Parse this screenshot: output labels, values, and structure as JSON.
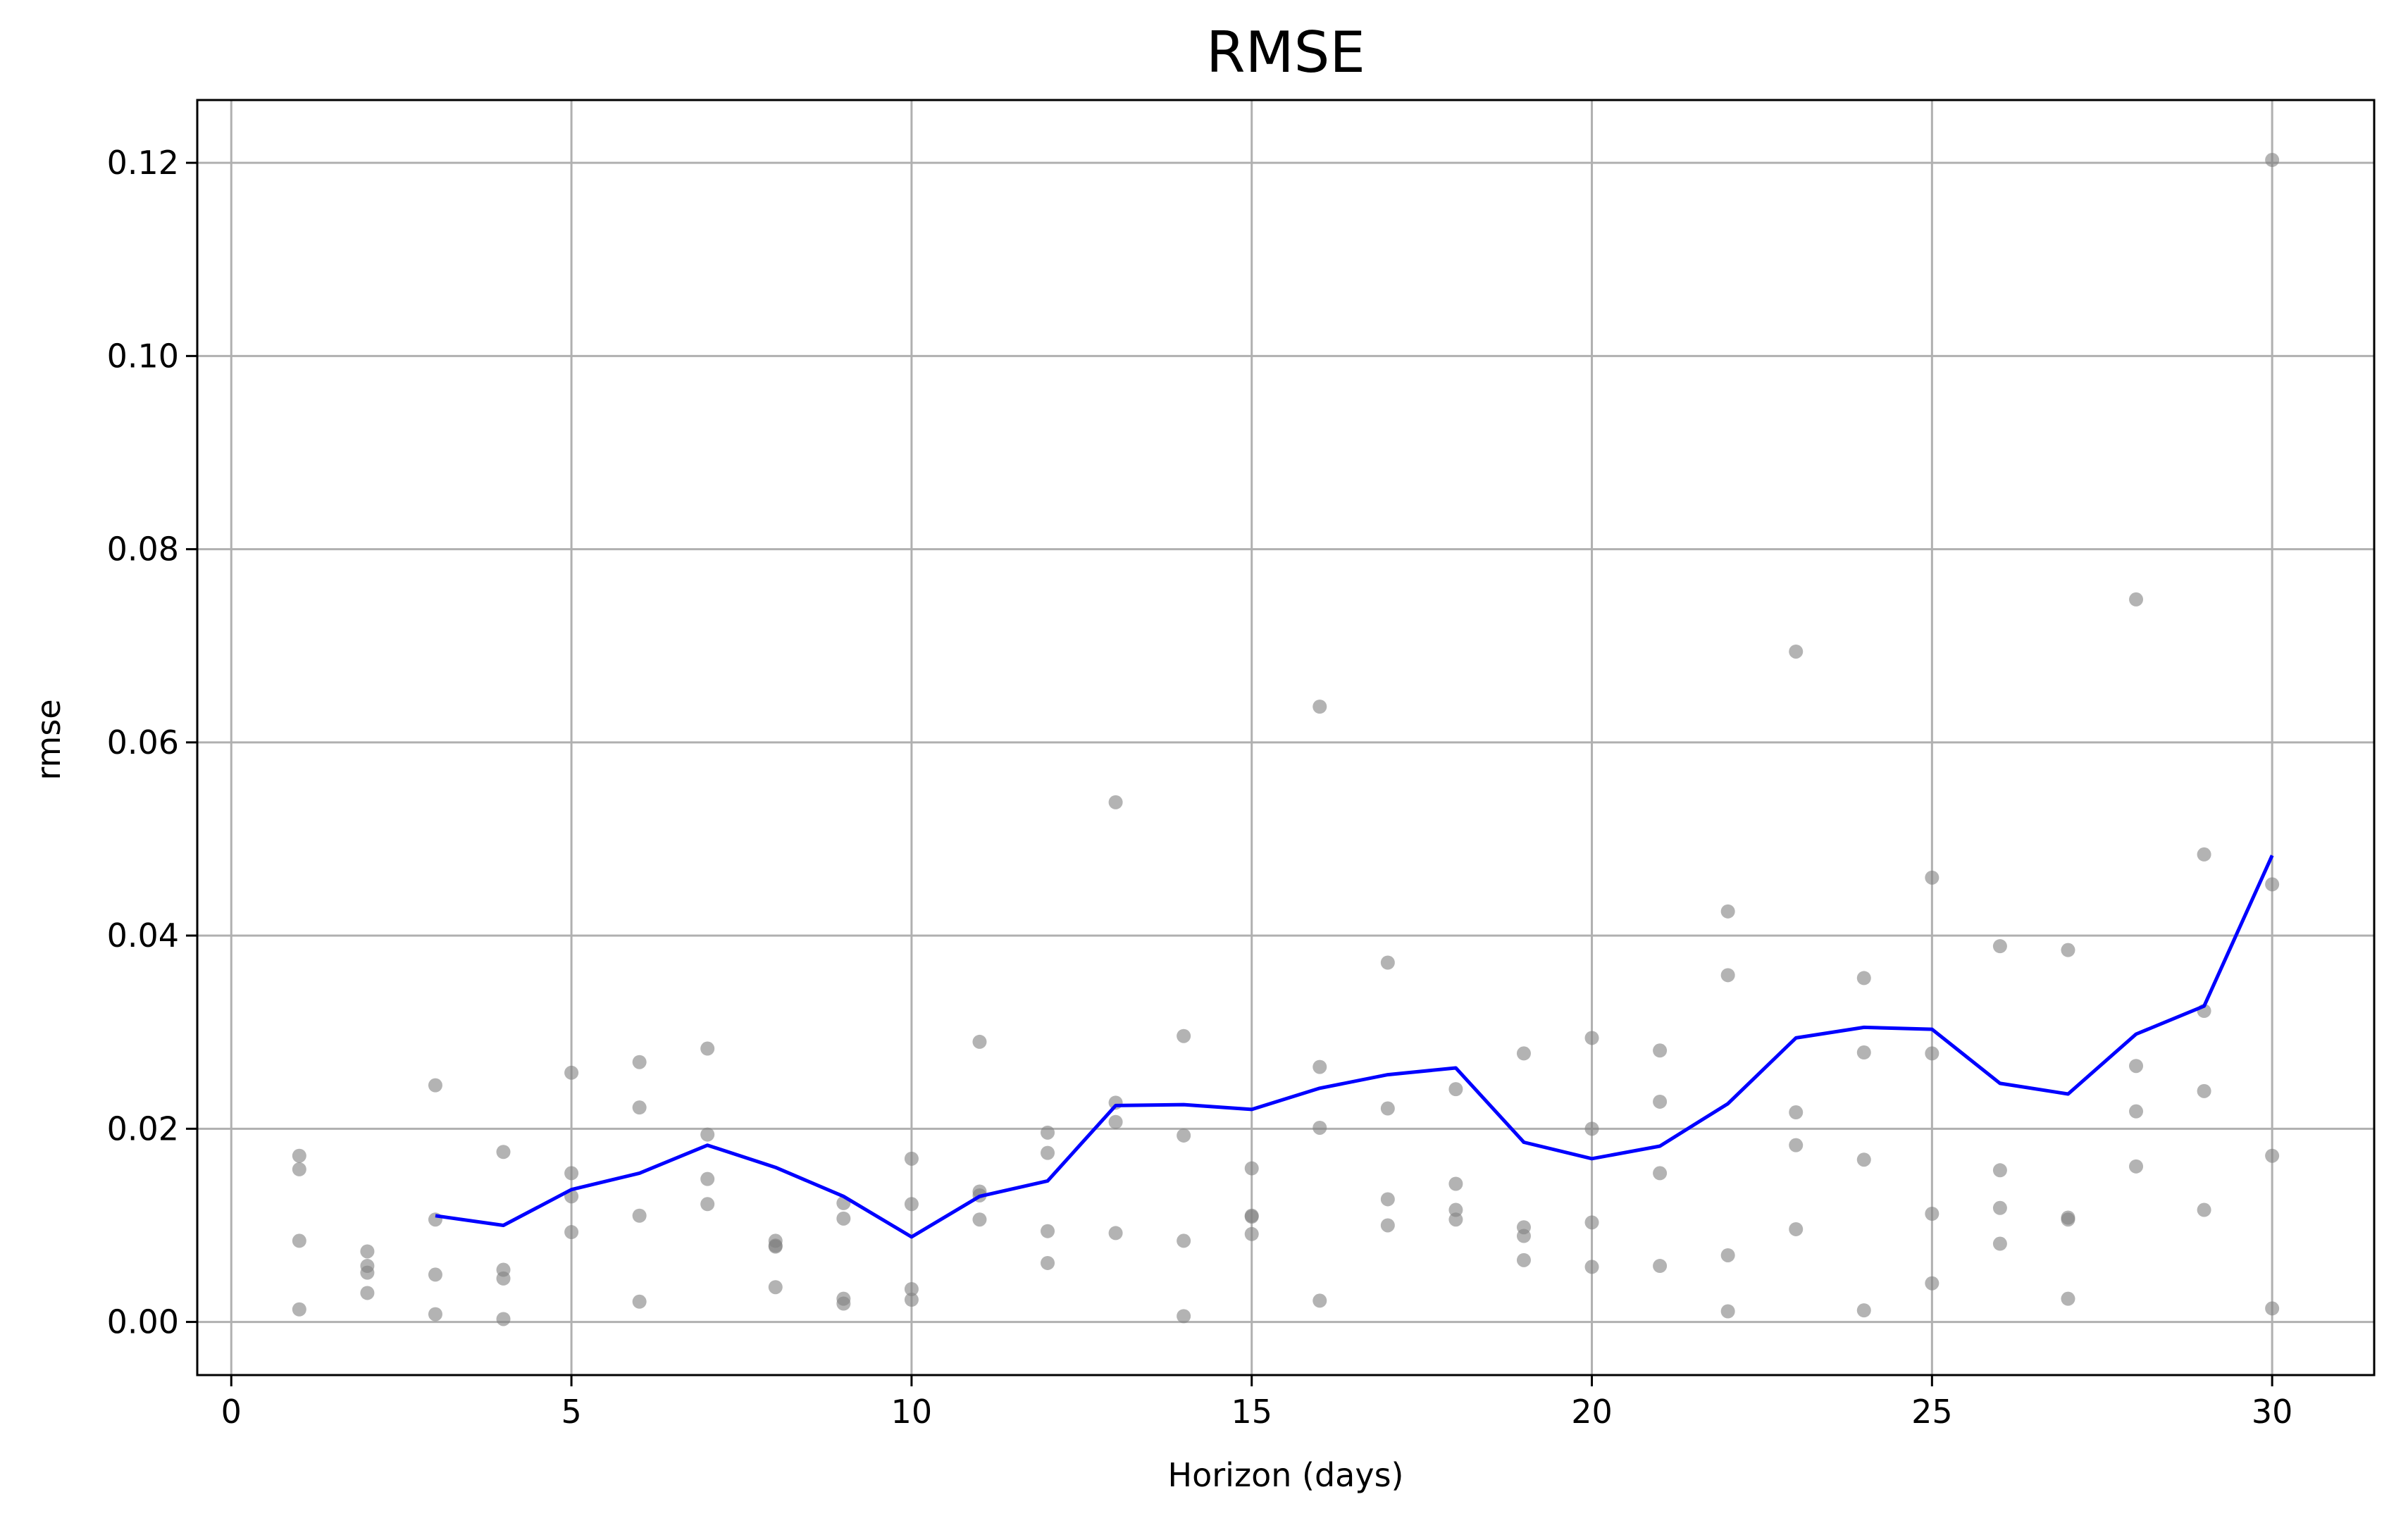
{
  "chart_data": {
    "type": "scatter",
    "title": "RMSE",
    "xlabel": "Horizon (days)",
    "ylabel": "rmse",
    "xlim": [
      -0.5,
      31.5
    ],
    "ylim": [
      -0.0055,
      0.1265
    ],
    "xticks": [
      0,
      5,
      10,
      15,
      20,
      25,
      30
    ],
    "yticks": [
      0.0,
      0.02,
      0.04,
      0.06,
      0.08,
      0.1,
      0.12
    ],
    "ytick_labels": [
      "0.00",
      "0.02",
      "0.04",
      "0.06",
      "0.08",
      "0.10",
      "0.12"
    ],
    "grid": true,
    "colors": {
      "points": "#808080",
      "line": "#0000ff",
      "grid": "#b0b0b0"
    },
    "series": [
      {
        "kind": "points",
        "x": [
          1,
          1,
          1,
          1,
          2,
          2,
          2,
          2,
          3,
          3,
          3,
          3,
          4,
          4,
          4,
          4,
          5,
          5,
          5,
          5,
          6,
          6,
          6,
          6,
          7,
          7,
          7,
          7,
          8,
          8,
          8,
          8,
          9,
          9,
          9,
          9,
          10,
          10,
          10,
          10,
          11,
          11,
          11,
          11,
          12,
          12,
          12,
          12,
          13,
          13,
          13,
          13,
          14,
          14,
          14,
          14,
          15,
          15,
          15,
          15,
          16,
          16,
          16,
          16,
          17,
          17,
          17,
          17,
          18,
          18,
          18,
          18,
          19,
          19,
          19,
          19,
          20,
          20,
          20,
          20,
          21,
          21,
          21,
          21,
          22,
          22,
          22,
          22,
          23,
          23,
          23,
          23,
          24,
          24,
          24,
          24,
          25,
          25,
          25,
          25,
          26,
          26,
          26,
          26,
          27,
          27,
          27,
          27,
          28,
          28,
          28,
          28,
          29,
          29,
          29,
          29,
          30,
          30,
          30,
          30
        ],
        "y": [
          0.0172,
          0.0158,
          0.0084,
          0.0013,
          0.0073,
          0.0058,
          0.0051,
          0.003,
          0.0245,
          0.0106,
          0.0049,
          0.0008,
          0.0176,
          0.0054,
          0.0045,
          0.0003,
          0.0258,
          0.0154,
          0.013,
          0.0093,
          0.0269,
          0.0222,
          0.011,
          0.0021,
          0.0283,
          0.0194,
          0.0148,
          0.0122,
          0.0084,
          0.0079,
          0.0078,
          0.0036,
          0.0123,
          0.0107,
          0.0024,
          0.0019,
          0.0169,
          0.0122,
          0.0034,
          0.0023,
          0.029,
          0.0135,
          0.0131,
          0.0106,
          0.0196,
          0.0175,
          0.0094,
          0.0061,
          0.0538,
          0.0227,
          0.0207,
          0.0092,
          0.0296,
          0.0193,
          0.0084,
          0.0006,
          0.0159,
          0.011,
          0.0109,
          0.0091,
          0.0637,
          0.0264,
          0.0201,
          0.0022,
          0.0372,
          0.0221,
          0.0127,
          0.01,
          0.0241,
          0.0143,
          0.0116,
          0.0106,
          0.0278,
          0.0098,
          0.0089,
          0.0064,
          0.0294,
          0.02,
          0.0103,
          0.0057,
          0.0281,
          0.0228,
          0.0154,
          0.0058,
          0.0425,
          0.0359,
          0.0069,
          0.0011,
          0.0694,
          0.0217,
          0.0183,
          0.0096,
          0.0356,
          0.0279,
          0.0168,
          0.0012,
          0.046,
          0.0278,
          0.0112,
          0.004,
          0.0389,
          0.0157,
          0.0118,
          0.0081,
          0.0385,
          0.0108,
          0.0106,
          0.0024,
          0.0748,
          0.0265,
          0.0218,
          0.0161,
          0.0484,
          0.0322,
          0.0239,
          0.0116,
          0.1203,
          0.0453,
          0.0172,
          0.0014
        ]
      },
      {
        "kind": "line",
        "x": [
          3,
          4,
          5,
          6,
          7,
          8,
          9,
          10,
          11,
          12,
          13,
          14,
          15,
          16,
          17,
          18,
          19,
          20,
          21,
          22,
          23,
          24,
          25,
          26,
          27,
          28,
          29,
          30
        ],
        "y": [
          0.011,
          0.01,
          0.0137,
          0.0154,
          0.0183,
          0.016,
          0.013,
          0.0088,
          0.013,
          0.0146,
          0.0224,
          0.0225,
          0.022,
          0.0242,
          0.0256,
          0.0263,
          0.0186,
          0.0169,
          0.0182,
          0.0226,
          0.0294,
          0.0305,
          0.0303,
          0.0247,
          0.0236,
          0.0298,
          0.0327,
          0.0483
        ]
      }
    ]
  }
}
